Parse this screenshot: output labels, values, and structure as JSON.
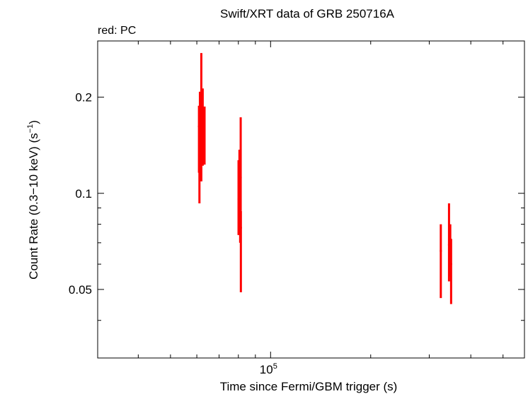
{
  "chart_data": {
    "type": "scatter",
    "title": "Swift/XRT data of GRB 250716A",
    "subtitle": "red: PC",
    "xlabel": "Time since Fermi/GBM trigger (s)",
    "ylabel": "Count Rate (0.3−10 keV) (s",
    "ylabel_sup": "−1",
    "ylabel_tail": ")",
    "x_scale": "log",
    "y_scale": "log",
    "xlim": [
      30200,
      580000
    ],
    "ylim": [
      0.0305,
      0.3
    ],
    "y_ticks": [
      {
        "value": 0.2,
        "label": "0.2"
      },
      {
        "value": 0.1,
        "label": "0.1"
      },
      {
        "value": 0.05,
        "label": "0.05"
      }
    ],
    "x_ticks": [
      {
        "value": 100000,
        "base": "10",
        "exp": "5"
      }
    ],
    "x_minor_ticks": [
      40000,
      50000,
      60000,
      70000,
      80000,
      90000,
      200000,
      300000,
      400000,
      500000
    ],
    "y_minor_ticks": [
      0.04,
      0.06,
      0.07,
      0.08,
      0.09,
      0.3
    ],
    "grid": false,
    "series": [
      {
        "color": "#ff0000",
        "points": [
          {
            "x": 60900,
            "y": 0.162,
            "ylo": 0.116,
            "yhi": 0.188
          },
          {
            "x": 61300,
            "y": 0.179,
            "ylo": 0.135,
            "yhi": 0.208
          },
          {
            "x": 61900,
            "y": 0.158,
            "ylo": 0.109,
            "yhi": 0.275
          },
          {
            "x": 62500,
            "y": 0.167,
            "ylo": 0.122,
            "yhi": 0.213
          },
          {
            "x": 63300,
            "y": 0.153,
            "ylo": 0.123,
            "yhi": 0.187
          },
          {
            "x": 61100,
            "y": 0.135,
            "ylo": 0.093,
            "yhi": 0.178
          },
          {
            "x": 80100,
            "y": 0.096,
            "ylo": 0.074,
            "yhi": 0.127
          },
          {
            "x": 80600,
            "y": 0.104,
            "ylo": 0.078,
            "yhi": 0.137
          },
          {
            "x": 81300,
            "y": 0.112,
            "ylo": 0.088,
            "yhi": 0.173
          },
          {
            "x": 81000,
            "y": 0.078,
            "ylo": 0.07,
            "yhi": 0.087
          },
          {
            "x": 81400,
            "y": 0.078,
            "ylo": 0.049,
            "yhi": 0.088
          },
          {
            "x": 325000,
            "y": 0.066,
            "ylo": 0.047,
            "yhi": 0.08
          },
          {
            "x": 344000,
            "y": 0.069,
            "ylo": 0.053,
            "yhi": 0.093
          },
          {
            "x": 347000,
            "y": 0.064,
            "ylo": 0.055,
            "yhi": 0.08
          },
          {
            "x": 349000,
            "y": 0.06,
            "ylo": 0.045,
            "yhi": 0.072
          }
        ]
      }
    ]
  }
}
